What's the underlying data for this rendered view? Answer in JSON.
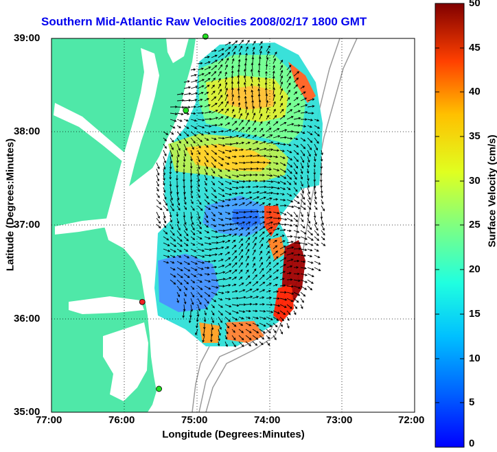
{
  "title": "Southern Mid-Atlantic Raw Velocities 2008/02/17 1800 GMT",
  "xlabel": "Longitude (Degrees:Minutes)",
  "ylabel": "Latitude (Degrees:Minutes)",
  "colorbar_label": "Surface Velocity (cm/s)",
  "colors": {
    "land": "#4fe8a8",
    "title": "#0000ee",
    "bathymetry": "#9a9a9a",
    "site_active": "#22dd22",
    "site_inactive": "#ee2222"
  },
  "chart_data": {
    "type": "heatmap",
    "title": "Southern Mid-Atlantic Raw Velocities 2008/02/17 1800 GMT",
    "xlabel": "Longitude (Degrees:Minutes)",
    "ylabel": "Latitude (Degrees:Minutes)",
    "x_ticks": [
      "77:00",
      "76:00",
      "75:00",
      "74:00",
      "73:00",
      "72:00"
    ],
    "y_ticks": [
      "39:00",
      "38:00",
      "37:00",
      "36:00",
      "35:00"
    ],
    "xlim": [
      -77,
      -72
    ],
    "ylim": [
      35,
      39
    ],
    "grid": true,
    "colorbar": {
      "label": "Surface Velocity (cm/s)",
      "range": [
        0,
        50
      ],
      "ticks": [
        0,
        5,
        10,
        15,
        20,
        25,
        30,
        35,
        40,
        45,
        50
      ],
      "colormap": "jet"
    },
    "radar_sites": [
      {
        "lon": -74.88,
        "lat": 39.02,
        "status": "active"
      },
      {
        "lon": -75.15,
        "lat": 38.23,
        "status": "active"
      },
      {
        "lon": -75.75,
        "lat": 36.18,
        "status": "inactive"
      },
      {
        "lon": -75.52,
        "lat": 35.25,
        "status": "active"
      }
    ]
  }
}
